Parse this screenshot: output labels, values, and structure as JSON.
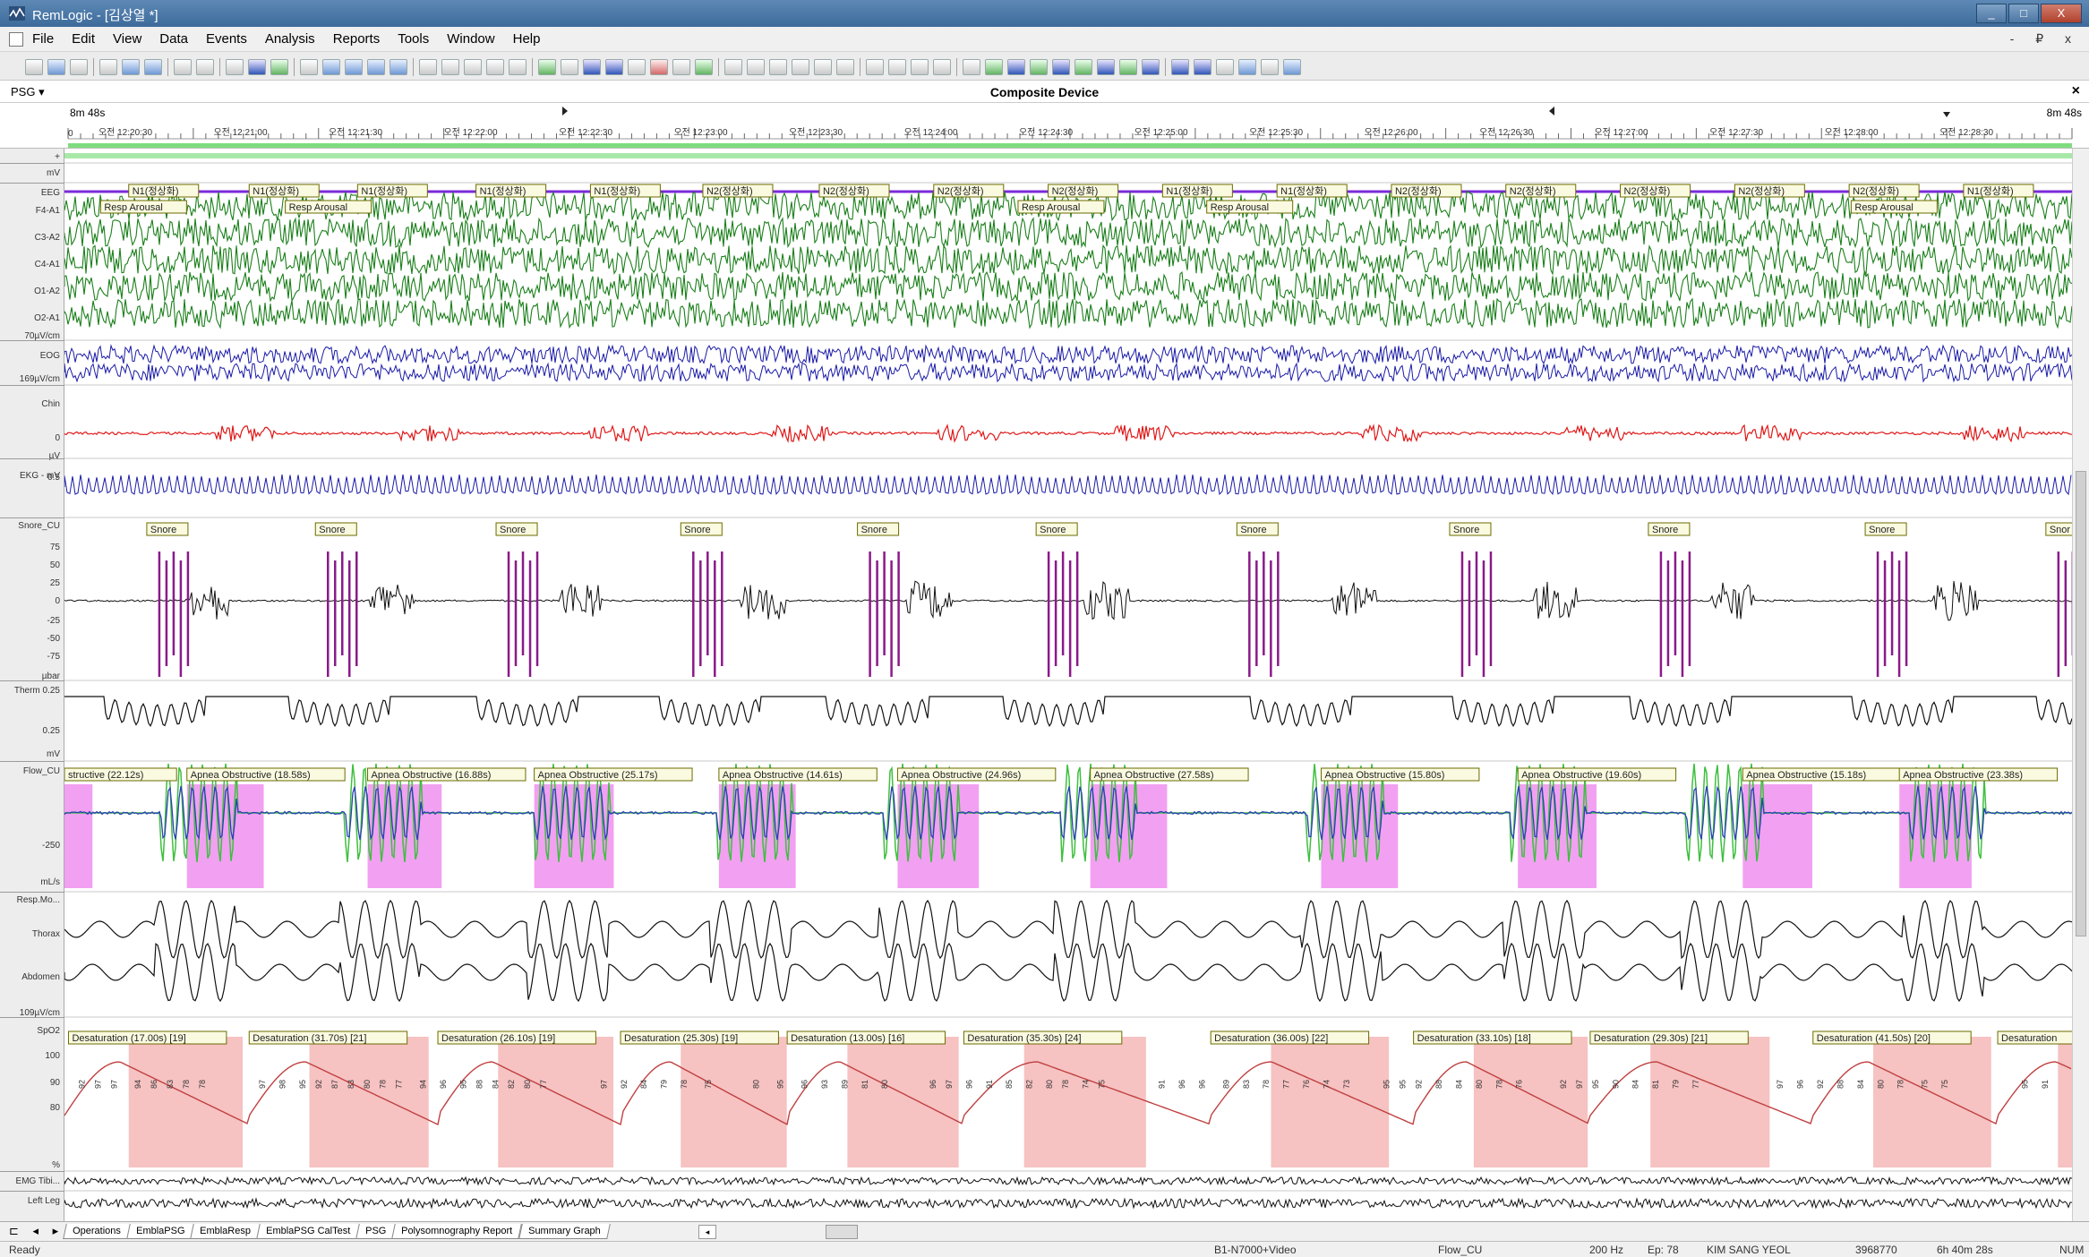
{
  "window": {
    "title": "RemLogic - [김상열 *]",
    "buttons": [
      "_",
      "□",
      "X"
    ]
  },
  "menu": {
    "items": [
      "File",
      "Edit",
      "View",
      "Data",
      "Events",
      "Analysis",
      "Reports",
      "Tools",
      "Window",
      "Help"
    ],
    "mdi_buttons": "- ₽ x"
  },
  "device": {
    "dropdown": "PSG ▾",
    "title": "Composite Device",
    "close": "×"
  },
  "ruler": {
    "left_label": "8m 48s",
    "right_label": "8m 48s",
    "zero": "0",
    "ticks": [
      "오전 12:20:30",
      "오전 12:21:00",
      "오전 12:21:30",
      "오전 12:22:00",
      "오전 12:22:30",
      "오전 12:23:00",
      "오전 12:23:30",
      "오전 12:24:00",
      "오전 12:24:30",
      "오전 12:25:00",
      "오전 12:25:30",
      "오전 12:26:00",
      "오전 12:26:30",
      "오전 12:27:00",
      "오전 12:27:30",
      "오전 12:28:00",
      "오전 12:28:30"
    ]
  },
  "channels": {
    "labels": [
      {
        "key": "top",
        "text": "+"
      },
      {
        "key": "mv",
        "text": "mV"
      },
      {
        "key": "eeg",
        "text": "EEG"
      },
      {
        "key": "f4a1",
        "text": "F4-A1"
      },
      {
        "key": "c3a2",
        "text": "C3-A2"
      },
      {
        "key": "c4a1",
        "text": "C4-A1"
      },
      {
        "key": "o1a2",
        "text": "O1-A2"
      },
      {
        "key": "o2a1",
        "text": "O2-A1"
      },
      {
        "key": "eeg_scale",
        "text": "70µV/cm"
      },
      {
        "key": "eog",
        "text": "EOG"
      },
      {
        "key": "eog_scale",
        "text": "169µV/cm"
      },
      {
        "key": "chin",
        "text": "Chin"
      },
      {
        "key": "chin_zero",
        "text": "0"
      },
      {
        "key": "chin_unit",
        "text": "µV"
      },
      {
        "key": "ekg",
        "text": "EKG - mV"
      },
      {
        "key": "ekg_val",
        "text": "0.5"
      },
      {
        "key": "snore",
        "text": "Snore_CU"
      },
      {
        "key": "s75",
        "text": "75"
      },
      {
        "key": "s50",
        "text": "50"
      },
      {
        "key": "s25",
        "text": "25"
      },
      {
        "key": "s0",
        "text": "0"
      },
      {
        "key": "sm25",
        "text": "-25"
      },
      {
        "key": "sm50",
        "text": "-50"
      },
      {
        "key": "sm75",
        "text": "-75"
      },
      {
        "key": "snore_unit",
        "text": "µbar"
      },
      {
        "key": "therm",
        "text": "Therm 0.25"
      },
      {
        "key": "therm_val",
        "text": "0.25"
      },
      {
        "key": "therm_unit",
        "text": "mV"
      },
      {
        "key": "flow",
        "text": "Flow_CU"
      },
      {
        "key": "flow_val",
        "text": "-250"
      },
      {
        "key": "flow_unit",
        "text": "mL/s"
      },
      {
        "key": "resp",
        "text": "Resp.Mo..."
      },
      {
        "key": "thorax",
        "text": "Thorax"
      },
      {
        "key": "abdomen",
        "text": "Abdomen"
      },
      {
        "key": "resp_scale",
        "text": "109µV/cm"
      },
      {
        "key": "spo2",
        "text": "SpO2"
      },
      {
        "key": "sp100",
        "text": "100"
      },
      {
        "key": "sp90",
        "text": "90"
      },
      {
        "key": "sp80",
        "text": "80"
      },
      {
        "key": "spo2_unit",
        "text": "%"
      },
      {
        "key": "emg",
        "text": "EMG Tibi..."
      },
      {
        "key": "leftleg",
        "text": "Left Leg"
      }
    ]
  },
  "events": {
    "sleep_stages": [
      {
        "t": 0.032,
        "label": "N1(정상화)"
      },
      {
        "t": 0.092,
        "label": "N1(정상화)"
      },
      {
        "t": 0.146,
        "label": "N1(정상화)"
      },
      {
        "t": 0.205,
        "label": "N1(정상화)"
      },
      {
        "t": 0.262,
        "label": "N1(정상화)"
      },
      {
        "t": 0.318,
        "label": "N2(정상화)"
      },
      {
        "t": 0.376,
        "label": "N2(정상화)"
      },
      {
        "t": 0.433,
        "label": "N2(정상화)"
      },
      {
        "t": 0.49,
        "label": "N2(정상화)"
      },
      {
        "t": 0.547,
        "label": "N1(정상화)"
      },
      {
        "t": 0.604,
        "label": "N1(정상화)"
      },
      {
        "t": 0.661,
        "label": "N2(정상화)"
      },
      {
        "t": 0.718,
        "label": "N2(정상화)"
      },
      {
        "t": 0.775,
        "label": "N2(정상화)"
      },
      {
        "t": 0.832,
        "label": "N2(정상화)"
      },
      {
        "t": 0.889,
        "label": "N2(정상화)"
      },
      {
        "t": 0.946,
        "label": "N1(정상화)"
      }
    ],
    "arousals": [
      {
        "t": 0.018,
        "label": "Resp Arousal"
      },
      {
        "t": 0.11,
        "label": "Resp Arousal"
      },
      {
        "t": 0.475,
        "label": "Resp Arousal"
      },
      {
        "t": 0.569,
        "label": "Resp Arousal"
      },
      {
        "t": 0.89,
        "label": "Resp Arousal"
      }
    ],
    "snores": [
      {
        "t": 0.041,
        "label": "Snore"
      },
      {
        "t": 0.125,
        "label": "Snore"
      },
      {
        "t": 0.215,
        "label": "Snore"
      },
      {
        "t": 0.307,
        "label": "Snore"
      },
      {
        "t": 0.395,
        "label": "Snore"
      },
      {
        "t": 0.484,
        "label": "Snore"
      },
      {
        "t": 0.584,
        "label": "Snore"
      },
      {
        "t": 0.69,
        "label": "Snore"
      },
      {
        "t": 0.789,
        "label": "Snore"
      },
      {
        "t": 0.897,
        "label": "Snore"
      },
      {
        "t": 0.987,
        "label": "Snor"
      }
    ],
    "apneas": [
      {
        "t": 0.0,
        "len": 0.031,
        "label": "structive (22.12s)"
      },
      {
        "t": 0.061,
        "len": 0.085,
        "label": "Apnea Obstructive (18.58s)"
      },
      {
        "t": 0.151,
        "len": 0.082,
        "label": "Apnea Obstructive (16.88s)"
      },
      {
        "t": 0.234,
        "len": 0.088,
        "label": "Apnea Obstructive (25.17s)"
      },
      {
        "t": 0.326,
        "len": 0.085,
        "label": "Apnea Obstructive (14.61s)"
      },
      {
        "t": 0.415,
        "len": 0.09,
        "label": "Apnea Obstructive (24.96s)"
      },
      {
        "t": 0.511,
        "len": 0.085,
        "label": "Apnea Obstructive (27.58s)"
      },
      {
        "t": 0.626,
        "len": 0.085,
        "label": "Apnea Obstructive (15.80s)"
      },
      {
        "t": 0.724,
        "len": 0.087,
        "label": "Apnea Obstructive (19.60s)"
      },
      {
        "t": 0.836,
        "len": 0.077,
        "label": "Apnea Obstructive (15.18s)"
      },
      {
        "t": 0.914,
        "len": 0.08,
        "label": "Apnea Obstructive (23.38s)"
      }
    ],
    "desats": [
      {
        "t": 0.002,
        "len": 0.086,
        "label": "Desaturation (17.00s) [19]"
      },
      {
        "t": 0.092,
        "len": 0.09,
        "label": "Desaturation (31.70s) [21]"
      },
      {
        "t": 0.186,
        "len": 0.087,
        "label": "Desaturation (26.10s) [19]"
      },
      {
        "t": 0.277,
        "len": 0.08,
        "label": "Desaturation (25.30s) [19]"
      },
      {
        "t": 0.36,
        "len": 0.084,
        "label": "Desaturation (13.00s) [16]"
      },
      {
        "t": 0.448,
        "len": 0.092,
        "label": "Desaturation (35.30s) [24]"
      },
      {
        "t": 0.571,
        "len": 0.089,
        "label": "Desaturation (36.00s) [22]"
      },
      {
        "t": 0.672,
        "len": 0.086,
        "label": "Desaturation (33.10s) [18]"
      },
      {
        "t": 0.76,
        "len": 0.09,
        "label": "Desaturation (29.30s) [21]"
      },
      {
        "t": 0.871,
        "len": 0.089,
        "label": "Desaturation (41.50s) [20]"
      },
      {
        "t": 0.963,
        "len": 0.04,
        "label": "Desaturation"
      }
    ],
    "spo2_values": [
      {
        "t": 0.01,
        "v": "92"
      },
      {
        "t": 0.018,
        "v": "97"
      },
      {
        "t": 0.026,
        "v": "97"
      },
      {
        "t": 0.038,
        "v": "94"
      },
      {
        "t": 0.046,
        "v": "86"
      },
      {
        "t": 0.054,
        "v": "83"
      },
      {
        "t": 0.062,
        "v": "78"
      },
      {
        "t": 0.07,
        "v": "78"
      },
      {
        "t": 0.1,
        "v": "97"
      },
      {
        "t": 0.11,
        "v": "98"
      },
      {
        "t": 0.12,
        "v": "95"
      },
      {
        "t": 0.128,
        "v": "92"
      },
      {
        "t": 0.136,
        "v": "87"
      },
      {
        "t": 0.144,
        "v": "83"
      },
      {
        "t": 0.152,
        "v": "80"
      },
      {
        "t": 0.16,
        "v": "78"
      },
      {
        "t": 0.168,
        "v": "77"
      },
      {
        "t": 0.18,
        "v": "94"
      },
      {
        "t": 0.19,
        "v": "96"
      },
      {
        "t": 0.2,
        "v": "95"
      },
      {
        "t": 0.208,
        "v": "88"
      },
      {
        "t": 0.216,
        "v": "84"
      },
      {
        "t": 0.224,
        "v": "82"
      },
      {
        "t": 0.232,
        "v": "80"
      },
      {
        "t": 0.24,
        "v": "77"
      },
      {
        "t": 0.27,
        "v": "97"
      },
      {
        "t": 0.28,
        "v": "92"
      },
      {
        "t": 0.29,
        "v": "84"
      },
      {
        "t": 0.3,
        "v": "79"
      },
      {
        "t": 0.31,
        "v": "78"
      },
      {
        "t": 0.322,
        "v": "75"
      },
      {
        "t": 0.346,
        "v": "80"
      },
      {
        "t": 0.358,
        "v": "95"
      },
      {
        "t": 0.37,
        "v": "96"
      },
      {
        "t": 0.38,
        "v": "93"
      },
      {
        "t": 0.39,
        "v": "89"
      },
      {
        "t": 0.4,
        "v": "81"
      },
      {
        "t": 0.41,
        "v": "80"
      },
      {
        "t": 0.434,
        "v": "96"
      },
      {
        "t": 0.442,
        "v": "97"
      },
      {
        "t": 0.452,
        "v": "96"
      },
      {
        "t": 0.462,
        "v": "91"
      },
      {
        "t": 0.472,
        "v": "85"
      },
      {
        "t": 0.482,
        "v": "82"
      },
      {
        "t": 0.492,
        "v": "80"
      },
      {
        "t": 0.5,
        "v": "78"
      },
      {
        "t": 0.51,
        "v": "74"
      },
      {
        "t": 0.518,
        "v": "75"
      },
      {
        "t": 0.548,
        "v": "91"
      },
      {
        "t": 0.558,
        "v": "96"
      },
      {
        "t": 0.568,
        "v": "96"
      },
      {
        "t": 0.58,
        "v": "89"
      },
      {
        "t": 0.59,
        "v": "83"
      },
      {
        "t": 0.6,
        "v": "78"
      },
      {
        "t": 0.61,
        "v": "77"
      },
      {
        "t": 0.62,
        "v": "76"
      },
      {
        "t": 0.63,
        "v": "74"
      },
      {
        "t": 0.64,
        "v": "73"
      },
      {
        "t": 0.66,
        "v": "95"
      },
      {
        "t": 0.668,
        "v": "95"
      },
      {
        "t": 0.676,
        "v": "92"
      },
      {
        "t": 0.686,
        "v": "88"
      },
      {
        "t": 0.696,
        "v": "84"
      },
      {
        "t": 0.706,
        "v": "80"
      },
      {
        "t": 0.716,
        "v": "78"
      },
      {
        "t": 0.726,
        "v": "76"
      },
      {
        "t": 0.748,
        "v": "92"
      },
      {
        "t": 0.756,
        "v": "97"
      },
      {
        "t": 0.764,
        "v": "95"
      },
      {
        "t": 0.774,
        "v": "90"
      },
      {
        "t": 0.784,
        "v": "84"
      },
      {
        "t": 0.794,
        "v": "81"
      },
      {
        "t": 0.804,
        "v": "79"
      },
      {
        "t": 0.814,
        "v": "77"
      },
      {
        "t": 0.856,
        "v": "97"
      },
      {
        "t": 0.866,
        "v": "96"
      },
      {
        "t": 0.876,
        "v": "92"
      },
      {
        "t": 0.886,
        "v": "88"
      },
      {
        "t": 0.896,
        "v": "84"
      },
      {
        "t": 0.906,
        "v": "80"
      },
      {
        "t": 0.916,
        "v": "78"
      },
      {
        "t": 0.928,
        "v": "75"
      },
      {
        "t": 0.938,
        "v": "75"
      },
      {
        "t": 0.978,
        "v": "95"
      },
      {
        "t": 0.988,
        "v": "91"
      }
    ]
  },
  "tabs": {
    "nav": "⊏ ◂ ▸",
    "items": [
      "Operations",
      "EmblaPSG",
      "EmblaResp",
      "EmblaPSG CalTest",
      "PSG",
      "Polysomnography Report",
      "Summary Graph"
    ],
    "scroll_left": "◂"
  },
  "status": {
    "ready": "Ready",
    "device": "B1-N7000+Video",
    "channel": "Flow_CU",
    "rate": "200 Hz",
    "epoch": "Ep: 78",
    "patient": "KIM SANG YEOL",
    "id": "3968770",
    "duration": "6h 40m 28s",
    "mode": "NUM"
  },
  "colors": {
    "eeg": "#1a7f1a",
    "eog": "#1a1aa8",
    "chin": "#e01818",
    "ekg": "#1a1aa8",
    "snore": "#111111",
    "snore_event": "#8a1a8a",
    "apnea_fill": "#f2a0f2",
    "flow_green": "#3fbf3f",
    "flow_blue": "#2a3fb5",
    "desat_fill": "#f6c2c2",
    "spo2_line": "#c04040",
    "stage_line": "#7a2ad8",
    "event_box_bg": "#fafae0",
    "event_box_border": "#6b6b00"
  },
  "icons": {
    "app": "remlogic-app-icon",
    "toolbar": [
      "new-icon",
      "open-icon",
      "save-icon",
      "copy-icon",
      "undo-icon",
      "redo-icon",
      "print-icon",
      "preview-icon",
      "zoom-icon",
      "chart-icon",
      "move-icon",
      "clock-icon",
      "montage-icon",
      "montage-icon",
      "montage-icon",
      "montage-icon",
      "window-icon",
      "window-icon",
      "window-icon",
      "window-icon",
      "stop-icon",
      "marker-icon",
      "pin-icon",
      "arrows-icon",
      "filter-icon",
      "grid-icon",
      "flask-icon",
      "pen-icon",
      "brush-icon",
      "block-icon",
      "first-icon",
      "prev-icon",
      "play-icon",
      "fast-icon",
      "next-icon",
      "pause-icon",
      "camera-icon",
      "audio-icon",
      "omega-icon",
      "chart2-icon",
      "person-icon",
      "person-icon",
      "person-icon",
      "person-icon",
      "person-icon",
      "person-icon",
      "person-icon",
      "person-icon",
      "pin2-icon",
      "flag-icon",
      "dot-icon",
      "report-icon",
      "doc-icon",
      "screen-icon"
    ]
  }
}
